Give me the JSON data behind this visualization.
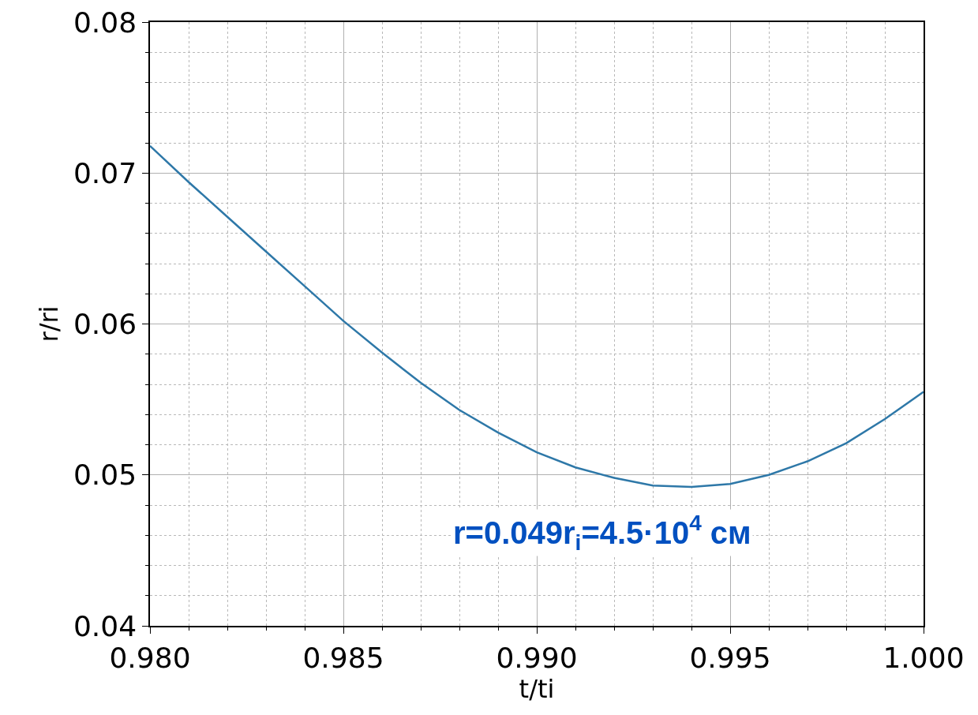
{
  "chart_data": {
    "type": "line",
    "xlabel": "t/ti",
    "ylabel": "r/ri",
    "x": [
      0.98,
      0.981,
      0.982,
      0.983,
      0.984,
      0.985,
      0.986,
      0.987,
      0.988,
      0.989,
      0.99,
      0.991,
      0.992,
      0.993,
      0.994,
      0.995,
      0.996,
      0.997,
      0.998,
      0.999,
      1.0
    ],
    "series": [
      {
        "color": "#2e78a8",
        "values": [
          0.0718,
          0.0694,
          0.0671,
          0.0648,
          0.0625,
          0.0602,
          0.0581,
          0.0561,
          0.0543,
          0.0528,
          0.0515,
          0.0505,
          0.0498,
          0.0493,
          0.0492,
          0.0494,
          0.05,
          0.0509,
          0.0521,
          0.0537,
          0.0555
        ]
      }
    ],
    "xlim": [
      0.98,
      1.0
    ],
    "xticks": [
      {
        "value": 0.98,
        "label": "0.980"
      },
      {
        "value": 0.981,
        "label": null
      },
      {
        "value": 0.982,
        "label": null
      },
      {
        "value": 0.983,
        "label": null
      },
      {
        "value": 0.984,
        "label": null
      },
      {
        "value": 0.985,
        "label": "0.985"
      },
      {
        "value": 0.986,
        "label": null
      },
      {
        "value": 0.987,
        "label": null
      },
      {
        "value": 0.988,
        "label": null
      },
      {
        "value": 0.989,
        "label": null
      },
      {
        "value": 0.99,
        "label": "0.990"
      },
      {
        "value": 0.991,
        "label": null
      },
      {
        "value": 0.992,
        "label": null
      },
      {
        "value": 0.993,
        "label": null
      },
      {
        "value": 0.994,
        "label": null
      },
      {
        "value": 0.995,
        "label": "0.995"
      },
      {
        "value": 0.996,
        "label": null
      },
      {
        "value": 0.997,
        "label": null
      },
      {
        "value": 0.998,
        "label": null
      },
      {
        "value": 0.999,
        "label": null
      },
      {
        "value": 1.0,
        "label": "1.000"
      }
    ],
    "ylim": [
      0.04,
      0.08
    ],
    "yticks": [
      0.04,
      {
        "value": 0.042,
        "label": null
      },
      {
        "value": 0.044,
        "label": null
      },
      {
        "value": 0.046,
        "label": null
      },
      {
        "value": 0.048,
        "label": null
      },
      0.05,
      {
        "value": 0.052,
        "label": null
      },
      {
        "value": 0.054,
        "label": null
      },
      {
        "value": 0.056,
        "label": null
      },
      {
        "value": 0.058,
        "label": null
      },
      0.06,
      {
        "value": 0.062,
        "label": null
      },
      {
        "value": 0.064,
        "label": null
      },
      {
        "value": 0.066,
        "label": null
      },
      {
        "value": 0.068,
        "label": null
      },
      0.07,
      {
        "value": 0.072,
        "label": null
      },
      {
        "value": 0.074,
        "label": null
      },
      {
        "value": 0.076,
        "label": null
      },
      {
        "value": 0.078,
        "label": null
      },
      0.08
    ],
    "grid": true,
    "marker": "none",
    "line_style": "solid",
    "annotations": [
      "r=0.049r$_{i}$=4.5·10$^{4}$ см"
    ]
  }
}
